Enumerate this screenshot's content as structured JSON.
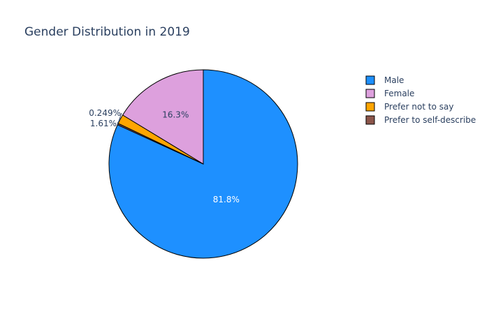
{
  "chart_data": {
    "type": "pie",
    "title": "Gender Distribution in 2019",
    "slices": [
      {
        "label": "Male",
        "value": 81.8,
        "text": "81.8%",
        "color": "#1e90ff",
        "text_color": "#ffffff",
        "text_position": "inside"
      },
      {
        "label": "Prefer to self-describe",
        "value": 0.249,
        "text": "0.249%",
        "color": "#8c564b",
        "text_color": "#2a3f5f",
        "text_position": "outside"
      },
      {
        "label": "Prefer not to say",
        "value": 1.61,
        "text": "1.61%",
        "color": "#ffa500",
        "text_color": "#2a3f5f",
        "text_position": "outside"
      },
      {
        "label": "Female",
        "value": 16.3,
        "text": "16.3%",
        "color": "#dda0dd",
        "text_color": "#2a3f5f",
        "text_position": "inside"
      }
    ],
    "legend": {
      "placement": "right",
      "items": [
        {
          "label": "Male",
          "color": "#1e90ff"
        },
        {
          "label": "Female",
          "color": "#dda0dd"
        },
        {
          "label": "Prefer not to say",
          "color": "#ffa500"
        },
        {
          "label": "Prefer to self-describe",
          "color": "#8c564b"
        }
      ]
    }
  }
}
